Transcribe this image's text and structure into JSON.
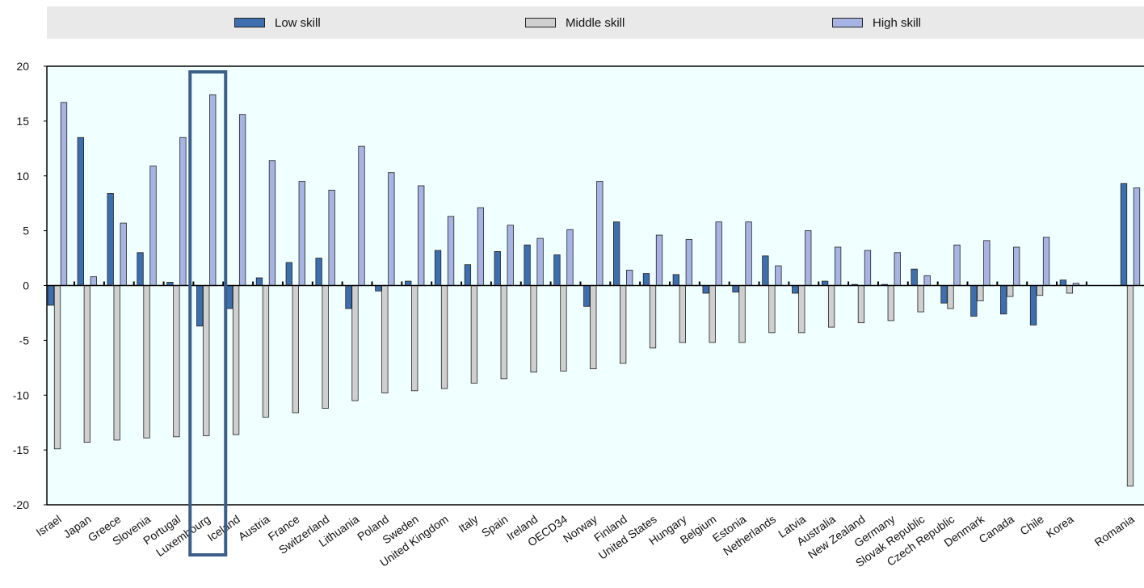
{
  "colors": {
    "low_skill": "#3d6fae",
    "middle_skill": "#cfcfcf",
    "high_skill": "#a7b4e3",
    "plot_background": "#f0ffff",
    "highlight_box": "#3b5f8a"
  },
  "chart_data": {
    "type": "bar",
    "ylim": [
      -20,
      20
    ],
    "yticks": [
      "20",
      "15",
      "10",
      "5",
      "0",
      "-5",
      "-10",
      "-15",
      "-20"
    ],
    "ytick_values": [
      20,
      15,
      10,
      5,
      0,
      -5,
      -10,
      -15,
      -20
    ],
    "legend_position": "top",
    "highlight_category": "Luxembourg",
    "categories": [
      "Israel",
      "Japan",
      "Greece",
      "Slovenia",
      "Portugal",
      "Luxembourg",
      "Iceland",
      "Austria",
      "France",
      "Switzerland",
      "Lithuania",
      "Poland",
      "Sweden",
      "United Kingdom",
      "Italy",
      "Spain",
      "Ireland",
      "OECD34",
      "Norway",
      "Finland",
      "United States",
      "Hungary",
      "Belgium",
      "Estonia",
      "Netherlands",
      "Latvia",
      "Australia",
      "New Zealand",
      "Germany",
      "Slovak Republic",
      "Czech Republic",
      "Denmark",
      "Canada",
      "Chile",
      "Korea",
      "Romania"
    ],
    "series": [
      {
        "name": "Low skill",
        "values": [
          -1.8,
          13.5,
          8.4,
          3.0,
          0.3,
          -3.7,
          -2.1,
          0.7,
          2.1,
          2.5,
          -2.1,
          -0.5,
          0.4,
          3.2,
          1.9,
          3.1,
          3.7,
          2.8,
          -1.9,
          5.8,
          1.1,
          1.0,
          -0.7,
          -0.6,
          2.7,
          -0.7,
          0.4,
          0.1,
          0.1,
          1.5,
          -1.6,
          -2.8,
          -2.6,
          -3.6,
          0.5,
          9.3
        ]
      },
      {
        "name": "Middle skill",
        "values": [
          -14.9,
          -14.3,
          -14.1,
          -13.9,
          -13.8,
          -13.7,
          -13.6,
          -12.0,
          -11.6,
          -11.2,
          -10.5,
          -9.8,
          -9.6,
          -9.4,
          -8.9,
          -8.5,
          -7.9,
          -7.8,
          -7.6,
          -7.1,
          -5.7,
          -5.2,
          -5.2,
          -5.2,
          -4.3,
          -4.3,
          -3.8,
          -3.4,
          -3.2,
          -2.4,
          -2.1,
          -1.4,
          -1.0,
          -0.9,
          -0.7,
          -18.3
        ]
      },
      {
        "name": "High skill",
        "values": [
          16.7,
          0.8,
          5.7,
          10.9,
          13.5,
          17.4,
          15.6,
          11.4,
          9.5,
          8.7,
          12.7,
          10.3,
          9.1,
          6.3,
          7.1,
          5.5,
          4.3,
          5.1,
          9.5,
          1.4,
          4.6,
          4.2,
          5.8,
          5.8,
          1.8,
          5.0,
          3.5,
          3.2,
          3.0,
          0.9,
          3.7,
          4.1,
          3.5,
          4.4,
          0.2,
          8.9
        ]
      }
    ]
  }
}
